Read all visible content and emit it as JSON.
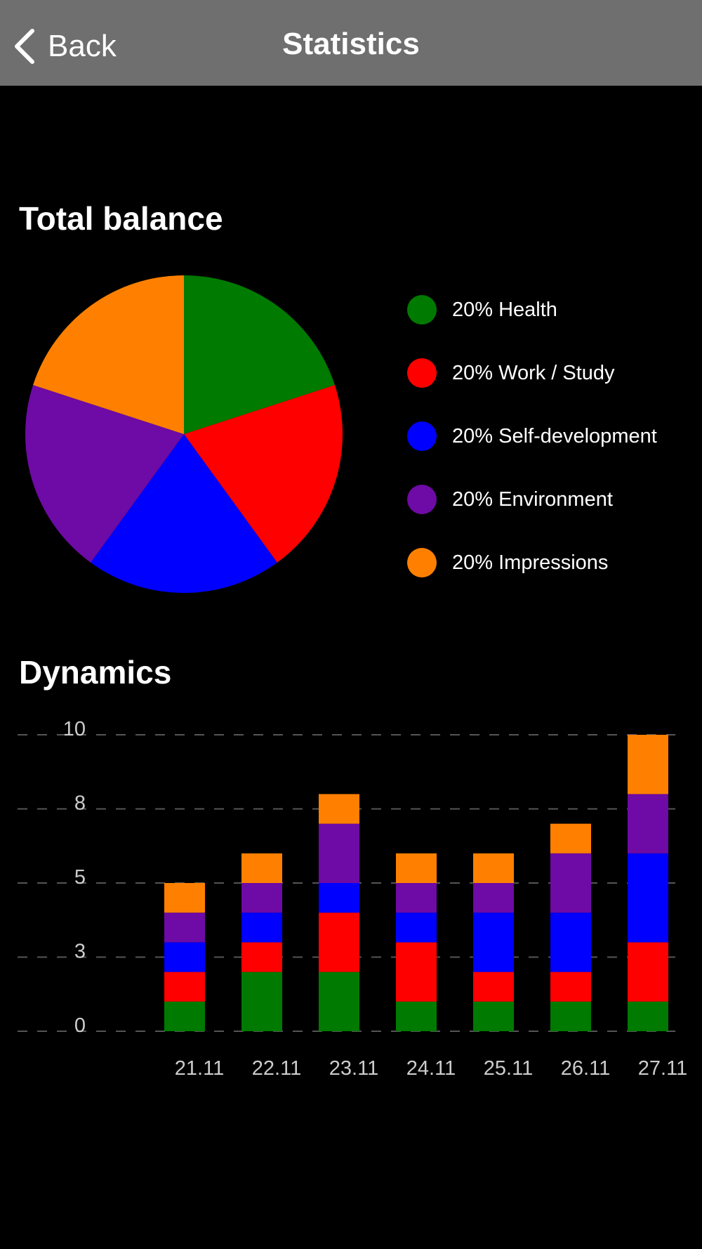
{
  "header": {
    "back_label": "Back",
    "title": "Statistics",
    "colors": {
      "background": "#6f6f6f",
      "text": "#ffffff"
    }
  },
  "sections": {
    "total_balance_title": "Total balance",
    "dynamics_title": "Dynamics"
  },
  "colors": {
    "Health": "#007a00",
    "Work / Study": "#ff0000",
    "Self-development": "#0000ff",
    "Environment": "#6e0aa5",
    "Impressions": "#ff8000",
    "grid": "#555555",
    "axis_text": "#cccccc"
  },
  "legend": [
    {
      "label": "20% Health",
      "category": "Health"
    },
    {
      "label": "20% Work / Study",
      "category": "Work / Study"
    },
    {
      "label": "20% Self-development",
      "category": "Self-development"
    },
    {
      "label": "20% Environment",
      "category": "Environment"
    },
    {
      "label": "20% Impressions",
      "category": "Impressions"
    }
  ],
  "chart_data": [
    {
      "type": "pie",
      "title": "Total balance",
      "categories": [
        "Health",
        "Work / Study",
        "Self-development",
        "Environment",
        "Impressions"
      ],
      "values": [
        20,
        20,
        20,
        20,
        20
      ],
      "unit": "%"
    },
    {
      "type": "bar",
      "stacked": true,
      "title": "Dynamics",
      "categories": [
        "21.11",
        "22.11",
        "23.11",
        "24.11",
        "25.11",
        "26.11",
        "27.11"
      ],
      "series": [
        {
          "name": "Health",
          "values": [
            1,
            2,
            2,
            1,
            1,
            1,
            1
          ]
        },
        {
          "name": "Work / Study",
          "values": [
            1,
            1,
            2,
            2,
            1,
            1,
            2
          ]
        },
        {
          "name": "Self-development",
          "values": [
            1,
            1,
            1,
            1,
            2,
            2,
            3
          ]
        },
        {
          "name": "Environment",
          "values": [
            1,
            1,
            2,
            1,
            1,
            2,
            2
          ]
        },
        {
          "name": "Impressions",
          "values": [
            1,
            1,
            1,
            1,
            1,
            1,
            2
          ]
        }
      ],
      "ylim": [
        0,
        10
      ],
      "yticks": [
        0,
        2.5,
        5,
        7.5,
        10
      ],
      "ytick_labels": [
        "0",
        "3",
        "5",
        "8",
        "10"
      ],
      "grid": true,
      "grid_style": "dashed"
    }
  ]
}
